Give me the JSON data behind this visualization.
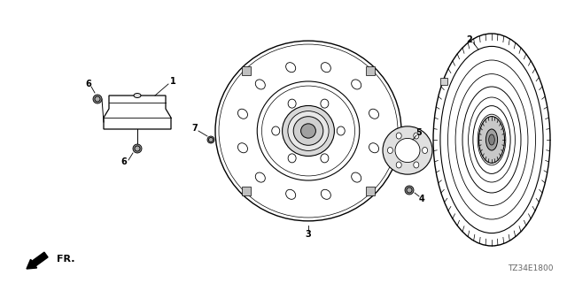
{
  "bg_color": "#ffffff",
  "fig_width": 6.4,
  "fig_height": 3.2,
  "diagram_code": "TZ34E1800",
  "line_color": "#000000",
  "text_color": "#000000",
  "gray_light": "#cccccc",
  "gray_mid": "#aaaaaa",
  "gray_dark": "#888888"
}
